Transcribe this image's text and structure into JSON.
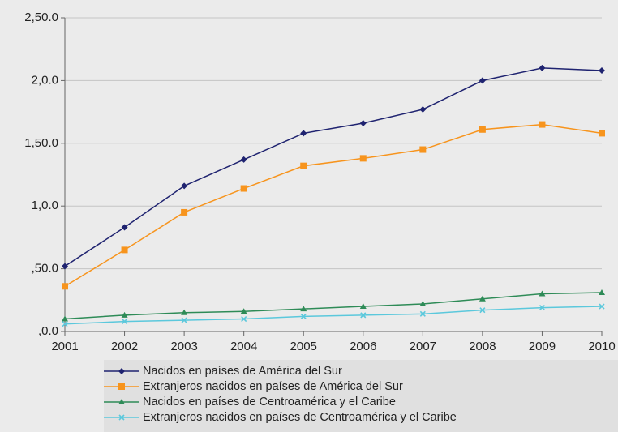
{
  "chart_data": {
    "type": "line",
    "categories": [
      "2001",
      "2002",
      "2003",
      "2004",
      "2005",
      "2006",
      "2007",
      "2008",
      "2009",
      "2010"
    ],
    "series": [
      {
        "name": "Nacidos en países de América del Sur",
        "color": "#1f2370",
        "marker": "diamond",
        "values": [
          0.52,
          0.83,
          1.16,
          1.37,
          1.58,
          1.66,
          1.77,
          2.0,
          2.1,
          2.08
        ]
      },
      {
        "name": "Extranjeros nacidos en países de América del Sur",
        "color": "#f7941d",
        "marker": "square",
        "values": [
          0.36,
          0.65,
          0.95,
          1.14,
          1.32,
          1.38,
          1.45,
          1.61,
          1.65,
          1.58
        ]
      },
      {
        "name": "Nacidos en países de Centroamérica y el Caribe",
        "color": "#2e8b57",
        "marker": "triangle",
        "values": [
          0.1,
          0.13,
          0.15,
          0.16,
          0.18,
          0.2,
          0.22,
          0.26,
          0.3,
          0.31
        ]
      },
      {
        "name": "Extranjeros nacidos en países de Centroamérica y el Caribe",
        "color": "#5bc8dc",
        "marker": "x",
        "values": [
          0.06,
          0.08,
          0.09,
          0.1,
          0.12,
          0.13,
          0.14,
          0.17,
          0.19,
          0.2
        ]
      }
    ],
    "ylim": [
      0,
      2.5
    ],
    "yticks": [
      {
        "value": 0,
        "label": ",0.0"
      },
      {
        "value": 0.5,
        "label": ",50.0"
      },
      {
        "value": 1,
        "label": "1,0.0"
      },
      {
        "value": 1.5,
        "label": "1,50.0"
      },
      {
        "value": 2,
        "label": "2,0.0"
      },
      {
        "value": 2.5,
        "label": "2,50.0"
      }
    ],
    "grid": true
  }
}
